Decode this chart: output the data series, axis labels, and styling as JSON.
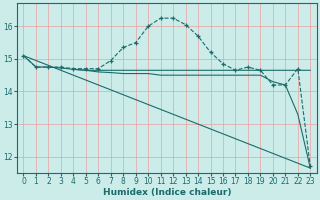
{
  "background_color": "#ccecea",
  "grid_color": "#e8a0a0",
  "line_color": "#1a6b6b",
  "xlabel": "Humidex (Indice chaleur)",
  "xlim": [
    -0.5,
    23.5
  ],
  "ylim": [
    11.5,
    16.7
  ],
  "yticks": [
    12,
    13,
    14,
    15,
    16
  ],
  "xticks": [
    0,
    1,
    2,
    3,
    4,
    5,
    6,
    7,
    8,
    9,
    10,
    11,
    12,
    13,
    14,
    15,
    16,
    17,
    18,
    19,
    20,
    21,
    22,
    23
  ],
  "line_marked": {
    "x": [
      0,
      1,
      2,
      3,
      4,
      5,
      6,
      7,
      8,
      9,
      10,
      11,
      12,
      13,
      14,
      15,
      16,
      17,
      18,
      19,
      20,
      21,
      22,
      23
    ],
    "y": [
      15.1,
      14.75,
      14.75,
      14.75,
      14.7,
      14.7,
      14.7,
      14.95,
      15.35,
      15.5,
      16.0,
      16.25,
      16.25,
      16.05,
      15.7,
      15.2,
      14.85,
      14.65,
      14.75,
      14.65,
      14.2,
      14.2,
      14.7,
      11.7
    ],
    "linestyle": "--",
    "marker": "+"
  },
  "line_flat": {
    "x": [
      0,
      1,
      2,
      3,
      4,
      5,
      6,
      7,
      8,
      9,
      10,
      11,
      12,
      13,
      14,
      15,
      16,
      17,
      18,
      19,
      20,
      21,
      22,
      23
    ],
    "y": [
      15.1,
      14.75,
      14.75,
      14.72,
      14.68,
      14.65,
      14.65,
      14.65,
      14.65,
      14.65,
      14.65,
      14.65,
      14.65,
      14.65,
      14.65,
      14.65,
      14.65,
      14.65,
      14.65,
      14.65,
      14.65,
      14.65,
      14.65,
      14.65
    ],
    "linestyle": "-",
    "marker": null
  },
  "line_diagonal": {
    "x": [
      0,
      23
    ],
    "y": [
      15.1,
      11.65
    ],
    "linestyle": "-",
    "marker": null
  },
  "line_step": {
    "x": [
      4,
      5,
      6,
      7,
      8,
      9,
      10,
      11,
      12,
      13,
      14,
      15,
      16,
      17,
      18,
      19,
      20,
      21,
      22,
      23
    ],
    "y": [
      14.68,
      14.65,
      14.6,
      14.58,
      14.55,
      14.55,
      14.55,
      14.5,
      14.5,
      14.5,
      14.5,
      14.5,
      14.5,
      14.5,
      14.5,
      14.5,
      14.3,
      14.2,
      13.3,
      11.65
    ],
    "linestyle": "-",
    "marker": null
  }
}
